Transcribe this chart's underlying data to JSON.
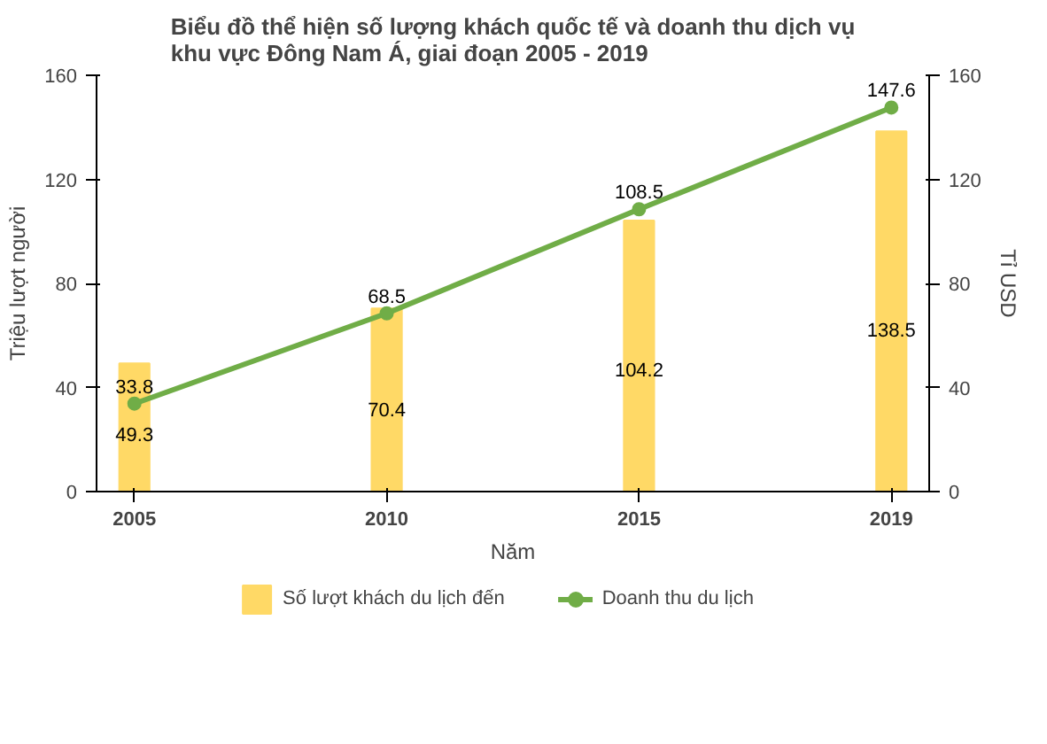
{
  "chart_data": {
    "type": "bar",
    "title": "Biểu đồ thể hiện số lượng khách quốc tế và doanh thu dịch vụ\nkhu vực Đông Nam Á, giai đoạn 2005 - 2019",
    "xlabel": "Năm",
    "ylabel": "Triệu lượt người",
    "y2label": "Tỉ USD",
    "categories": [
      "2005",
      "2010",
      "2015",
      "2019"
    ],
    "series": [
      {
        "name": "Số lượt khách du lịch đến",
        "color": "#ffd966",
        "values": [
          49.3,
          70.4,
          104.2,
          138.5
        ]
      },
      {
        "name": "Doanh thu du lịch",
        "type": "line",
        "axis": "y2",
        "color": "#70ad47",
        "marker": "circle",
        "values": [
          33.8,
          68.5,
          108.5,
          147.6
        ]
      }
    ],
    "ylim": [
      0,
      160
    ],
    "yticks": [
      0,
      40,
      80,
      120,
      160
    ],
    "y2lim": [
      0,
      160
    ],
    "y2ticks": [
      0,
      40,
      80,
      120,
      160
    ],
    "data_labels": true,
    "legend": "bottom",
    "grid": false
  }
}
